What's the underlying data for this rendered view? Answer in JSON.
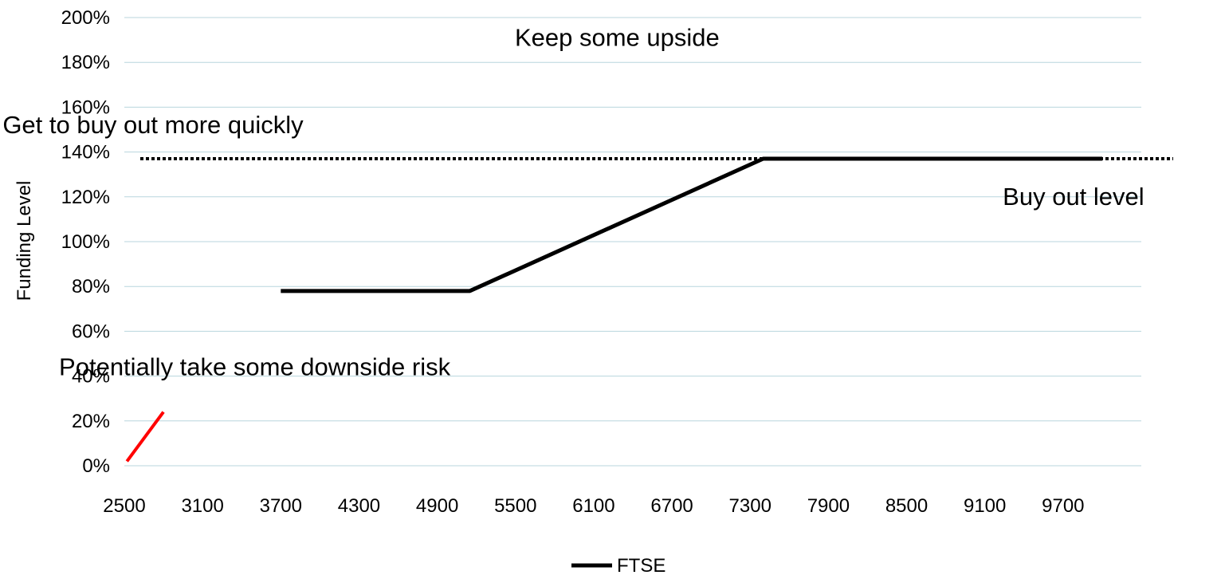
{
  "chart_data": {
    "type": "line",
    "title": "",
    "xlabel": "",
    "ylabel": "Funding Level",
    "x_tick_labels": [
      "2500",
      "3100",
      "3700",
      "4300",
      "4900",
      "5500",
      "6100",
      "6700",
      "7300",
      "7900",
      "8500",
      "9100",
      "9700"
    ],
    "y_tick_labels": [
      "0%",
      "20%",
      "40%",
      "60%",
      "80%",
      "100%",
      "120%",
      "140%",
      "160%",
      "180%",
      "200%"
    ],
    "xlim": [
      2500,
      10300
    ],
    "ylim": [
      0,
      200
    ],
    "grid": true,
    "legend_position": "bottom",
    "series": [
      {
        "name": "FTSE",
        "color": "#000000",
        "points": [
          [
            3700,
            78
          ],
          [
            5150,
            78
          ],
          [
            7400,
            137
          ],
          [
            10000,
            137
          ]
        ]
      }
    ],
    "reference_lines": [
      {
        "name": "buy-out-level",
        "style": "dotted",
        "color": "#000000",
        "y": 137,
        "x_start": 2500,
        "x_end": 10300
      }
    ],
    "extra_segments": [
      {
        "color": "#ff0000",
        "points": [
          [
            2520,
            2
          ],
          [
            2800,
            24
          ]
        ]
      }
    ],
    "annotations": [
      {
        "text": "Keep some upside",
        "x": 6280,
        "y": 191
      },
      {
        "text": "Get to buy out more quickly",
        "x": 2720,
        "y": 152
      },
      {
        "text": "Buy out level",
        "x": 9780,
        "y": 120
      },
      {
        "text": "Potentially take some downside risk",
        "x": 3500,
        "y": 44
      }
    ],
    "colors": {
      "grid": "#b8d6dd",
      "axis_text": "#000000",
      "series": "#000000",
      "red_segment": "#ff0000"
    }
  }
}
